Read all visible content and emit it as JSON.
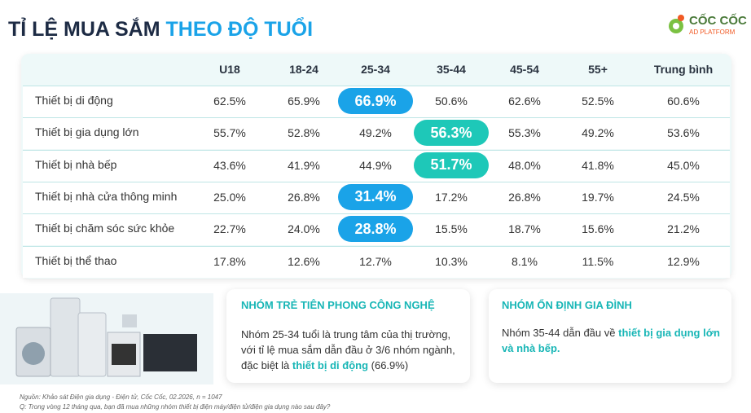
{
  "header": {
    "title": "TỈ LỆ MUA SẮM",
    "title_highlight": "THEO ĐỘ TUỔI",
    "logo": {
      "name": "CỐC CỐC",
      "sub": "AD PLATFORM"
    }
  },
  "table": {
    "columns": [
      "U18",
      "18-24",
      "25-34",
      "35-44",
      "45-54",
      "55+",
      "Trung bình"
    ],
    "rows": [
      {
        "label": "Thiết bị di động",
        "values": [
          "62.5%",
          "65.9%",
          "66.9%",
          "50.6%",
          "62.6%",
          "52.5%",
          "60.6%"
        ]
      },
      {
        "label": "Thiết bị gia dụng lớn",
        "values": [
          "55.7%",
          "52.8%",
          "49.2%",
          "56.3%",
          "55.3%",
          "49.2%",
          "53.6%"
        ]
      },
      {
        "label": "Thiết bị nhà bếp",
        "values": [
          "43.6%",
          "41.9%",
          "44.9%",
          "51.7%",
          "48.0%",
          "41.8%",
          "45.0%"
        ]
      },
      {
        "label": "Thiết bị nhà cửa thông minh",
        "values": [
          "25.0%",
          "26.8%",
          "31.4%",
          "17.2%",
          "26.8%",
          "19.7%",
          "24.5%"
        ]
      },
      {
        "label": "Thiết bị chăm sóc sức khỏe",
        "values": [
          "22.7%",
          "24.0%",
          "28.8%",
          "15.5%",
          "18.7%",
          "15.6%",
          "21.2%"
        ]
      },
      {
        "label": "Thiết bị thể thao",
        "values": [
          "17.8%",
          "12.6%",
          "12.7%",
          "10.3%",
          "8.1%",
          "11.5%",
          "12.9%"
        ]
      }
    ],
    "highlights": [
      {
        "row": 0,
        "column": 2,
        "color": "#1aa3e8"
      },
      {
        "row": 1,
        "column": 3,
        "color": "#1ec8b8"
      },
      {
        "row": 2,
        "column": 3,
        "color": "#1ec8b8"
      },
      {
        "row": 3,
        "column": 2,
        "color": "#1aa3e8"
      },
      {
        "row": 4,
        "column": 2,
        "color": "#1aa3e8"
      }
    ]
  },
  "cards": [
    {
      "title": "NHÓM TRẺ TIÊN PHONG CÔNG NGHỆ",
      "body": [
        "Nhóm 25-34 tuổi là trung tâm của thị trường, với tỉ lệ mua sắm dẫn đầu ở 3/6 nhóm ngành, đặc biệt là ",
        "thiết bị di động",
        " (66.9%)"
      ]
    },
    {
      "title": "NHÓM ỔN ĐỊNH GIA ĐÌNH",
      "body": [
        "Nhóm 35-44 dẫn đầu về ",
        "thiết bị gia dụng lớn và nhà bếp."
      ]
    }
  ],
  "footer": {
    "source": "Nguồn: Khảo sát Điện gia dụng - Điện tử, Cốc Cốc, 02.2026, n = 1047",
    "question": "Q: Trong vòng 12 tháng qua, bạn đã mua những nhóm thiết bị điện máy/điện tử/điện gia dụng nào sau đây?"
  }
}
